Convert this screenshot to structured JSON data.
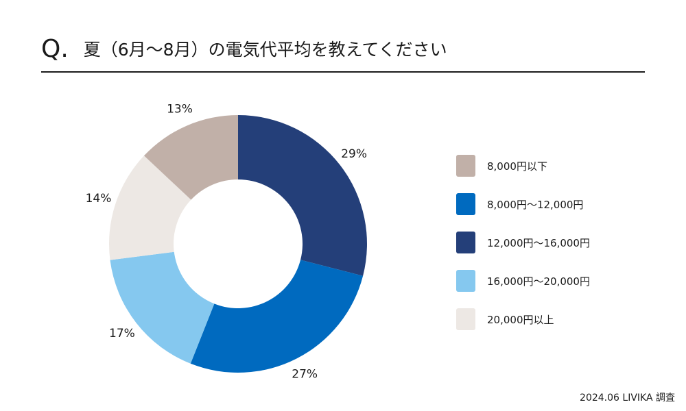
{
  "header": {
    "q_mark": "Q.",
    "title": "夏（6月〜8月）の電気代平均を教えてください"
  },
  "chart_data": {
    "type": "pie",
    "donut": true,
    "categories": [
      "8,000円以下",
      "8,000円〜12,000円",
      "12,000円〜16,000円",
      "16,000円〜20,000円",
      "20,000円以上"
    ],
    "colors": [
      "#c1b0a8",
      "#006abf",
      "#243f79",
      "#85c8ef",
      "#ede8e4"
    ],
    "segment_order": [
      2,
      1,
      3,
      4,
      0
    ],
    "values": [
      13,
      27,
      29,
      17,
      14
    ],
    "labels": [
      "13%",
      "27%",
      "29%",
      "17%",
      "14%"
    ],
    "legend_position": "right"
  },
  "footer": {
    "source": "2024.06 LIVIKA 調査"
  }
}
